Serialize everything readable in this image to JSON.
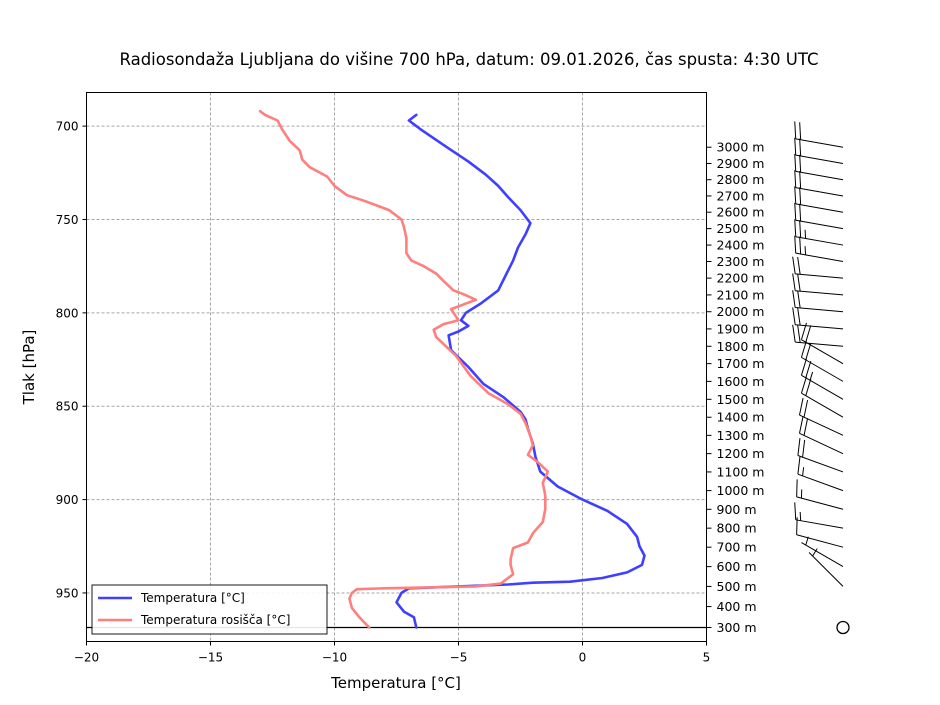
{
  "chart_data": {
    "type": "line",
    "title": "Radiosondaža Ljubljana do višine 700 hPa, datum: 09.01.2026, čas spusta: 4:30 UTC",
    "xlabel": "Temperatura [°C]",
    "ylabel": "Tlak [hPa]",
    "xlim": [
      -20,
      5
    ],
    "ylim": [
      976,
      682
    ],
    "x_ticks": [
      -20,
      -15,
      -10,
      -5,
      0,
      5
    ],
    "x_tick_labels": [
      "−20",
      "−15",
      "−10",
      "−5",
      "0",
      "5"
    ],
    "y_ticks": [
      700,
      750,
      800,
      850,
      900,
      950
    ],
    "y_tick_labels": [
      "700",
      "750",
      "800",
      "850",
      "900",
      "950"
    ],
    "grid": true,
    "surface_pressure": 968.5,
    "legend_position": "lower-left",
    "altitude_ticks": [
      {
        "label": "300 m",
        "p": 968.5
      },
      {
        "label": "400 m",
        "p": 957.3
      },
      {
        "label": "500 m",
        "p": 946.5
      },
      {
        "label": "600 m",
        "p": 935.9
      },
      {
        "label": "700 m",
        "p": 925.5
      },
      {
        "label": "800 m",
        "p": 915.3
      },
      {
        "label": "900 m",
        "p": 905.2
      },
      {
        "label": "1000 m",
        "p": 895.2
      },
      {
        "label": "1100 m",
        "p": 885.2
      },
      {
        "label": "1200 m",
        "p": 875.4
      },
      {
        "label": "1300 m",
        "p": 865.6
      },
      {
        "label": "1400 m",
        "p": 855.9
      },
      {
        "label": "1500 m",
        "p": 846.3
      },
      {
        "label": "1600 m",
        "p": 836.7
      },
      {
        "label": "1700 m",
        "p": 827.2
      },
      {
        "label": "1800 m",
        "p": 817.9
      },
      {
        "label": "1900 m",
        "p": 808.6
      },
      {
        "label": "2000 m",
        "p": 799.4
      },
      {
        "label": "2100 m",
        "p": 790.4
      },
      {
        "label": "2200 m",
        "p": 781.4
      },
      {
        "label": "2300 m",
        "p": 772.5
      },
      {
        "label": "2400 m",
        "p": 763.7
      },
      {
        "label": "2500 m",
        "p": 754.9
      },
      {
        "label": "2600 m",
        "p": 746.1
      },
      {
        "label": "2700 m",
        "p": 737.4
      },
      {
        "label": "2800 m",
        "p": 728.7
      },
      {
        "label": "2900 m",
        "p": 720.0
      },
      {
        "label": "3000 m",
        "p": 711.3
      }
    ],
    "series": [
      {
        "name": "Temperatura [°C]",
        "color": "#3f3fff",
        "points": [
          [
            -6.7,
            968.5
          ],
          [
            -6.8,
            963
          ],
          [
            -7.2,
            960
          ],
          [
            -7.5,
            955
          ],
          [
            -7.3,
            950
          ],
          [
            -7.0,
            947.5
          ],
          [
            -5.0,
            946.5
          ],
          [
            -3.0,
            945.5
          ],
          [
            -2.0,
            944.5
          ],
          [
            -0.5,
            944
          ],
          [
            0.8,
            942
          ],
          [
            1.8,
            939
          ],
          [
            2.4,
            935
          ],
          [
            2.5,
            930
          ],
          [
            2.3,
            925
          ],
          [
            2.2,
            920
          ],
          [
            1.8,
            913
          ],
          [
            1.0,
            906
          ],
          [
            0.0,
            900
          ],
          [
            -1.0,
            893
          ],
          [
            -1.7,
            885
          ],
          [
            -1.9,
            877
          ],
          [
            -2.0,
            870
          ],
          [
            -2.2,
            862
          ],
          [
            -2.3,
            857
          ],
          [
            -2.5,
            853
          ],
          [
            -3.2,
            845
          ],
          [
            -4.0,
            838
          ],
          [
            -4.6,
            829
          ],
          [
            -5.3,
            820
          ],
          [
            -5.4,
            812
          ],
          [
            -5.0,
            810
          ],
          [
            -4.6,
            807
          ],
          [
            -4.9,
            804
          ],
          [
            -4.7,
            800
          ],
          [
            -4.1,
            795
          ],
          [
            -3.4,
            788
          ],
          [
            -3.1,
            780
          ],
          [
            -2.8,
            772
          ],
          [
            -2.6,
            765
          ],
          [
            -2.3,
            758
          ],
          [
            -2.1,
            752
          ],
          [
            -2.5,
            745
          ],
          [
            -3.0,
            738
          ],
          [
            -3.4,
            732
          ],
          [
            -3.9,
            726
          ],
          [
            -4.6,
            719
          ],
          [
            -5.5,
            711
          ],
          [
            -6.5,
            702
          ],
          [
            -7.0,
            697
          ],
          [
            -6.7,
            694
          ]
        ]
      },
      {
        "name": "Temperatura rosišča [°C]",
        "color": "#ff7f7f",
        "points": [
          [
            -8.6,
            968.5
          ],
          [
            -9.0,
            963
          ],
          [
            -9.3,
            958
          ],
          [
            -9.4,
            953
          ],
          [
            -9.3,
            950
          ],
          [
            -9.1,
            948
          ],
          [
            -8.0,
            947.5
          ],
          [
            -6.0,
            947
          ],
          [
            -4.3,
            946.5
          ],
          [
            -3.3,
            945
          ],
          [
            -2.8,
            940
          ],
          [
            -2.9,
            935
          ],
          [
            -2.9,
            932
          ],
          [
            -2.8,
            926
          ],
          [
            -2.2,
            923
          ],
          [
            -2.0,
            918
          ],
          [
            -1.6,
            912
          ],
          [
            -1.5,
            905
          ],
          [
            -1.5,
            898
          ],
          [
            -1.6,
            891
          ],
          [
            -1.4,
            885
          ],
          [
            -1.8,
            880
          ],
          [
            -2.2,
            876
          ],
          [
            -2.0,
            871
          ],
          [
            -2.1,
            866
          ],
          [
            -2.3,
            859
          ],
          [
            -2.5,
            854
          ],
          [
            -3.0,
            849
          ],
          [
            -3.8,
            843
          ],
          [
            -4.5,
            834
          ],
          [
            -5.1,
            823
          ],
          [
            -5.9,
            813
          ],
          [
            -6.0,
            809
          ],
          [
            -5.6,
            806
          ],
          [
            -5.0,
            804
          ],
          [
            -5.3,
            798
          ],
          [
            -4.3,
            793
          ],
          [
            -4.8,
            790
          ],
          [
            -5.2,
            788
          ],
          [
            -5.6,
            783
          ],
          [
            -5.9,
            779
          ],
          [
            -6.4,
            775
          ],
          [
            -6.9,
            772
          ],
          [
            -7.1,
            768
          ],
          [
            -7.1,
            760
          ],
          [
            -7.2,
            754
          ],
          [
            -7.3,
            750
          ],
          [
            -7.8,
            745
          ],
          [
            -8.8,
            740
          ],
          [
            -9.5,
            737
          ],
          [
            -10.0,
            732
          ],
          [
            -10.3,
            727
          ],
          [
            -11.0,
            722
          ],
          [
            -11.3,
            718
          ],
          [
            -11.4,
            713
          ],
          [
            -11.8,
            708
          ],
          [
            -12.1,
            702
          ],
          [
            -12.3,
            697
          ],
          [
            -12.8,
            694
          ],
          [
            -13.0,
            692
          ]
        ]
      }
    ],
    "wind_barbs": [
      {
        "p": 711.3,
        "dir": 280,
        "kt": 20
      },
      {
        "p": 720.0,
        "dir": 280,
        "kt": 20
      },
      {
        "p": 728.7,
        "dir": 280,
        "kt": 20
      },
      {
        "p": 737.4,
        "dir": 280,
        "kt": 20
      },
      {
        "p": 746.1,
        "dir": 280,
        "kt": 20
      },
      {
        "p": 754.9,
        "dir": 280,
        "kt": 20
      },
      {
        "p": 763.7,
        "dir": 280,
        "kt": 25
      },
      {
        "p": 772.5,
        "dir": 280,
        "kt": 25
      },
      {
        "p": 781.4,
        "dir": 275,
        "kt": 20
      },
      {
        "p": 790.4,
        "dir": 275,
        "kt": 20
      },
      {
        "p": 799.4,
        "dir": 275,
        "kt": 20
      },
      {
        "p": 808.6,
        "dir": 275,
        "kt": 20
      },
      {
        "p": 817.9,
        "dir": 275,
        "kt": 20
      },
      {
        "p": 827.2,
        "dir": 300,
        "kt": 20
      },
      {
        "p": 836.7,
        "dir": 300,
        "kt": 20
      },
      {
        "p": 846.3,
        "dir": 300,
        "kt": 25
      },
      {
        "p": 855.9,
        "dir": 300,
        "kt": 20
      },
      {
        "p": 865.6,
        "dir": 295,
        "kt": 20
      },
      {
        "p": 875.4,
        "dir": 295,
        "kt": 20
      },
      {
        "p": 885.2,
        "dir": 290,
        "kt": 20
      },
      {
        "p": 895.2,
        "dir": 290,
        "kt": 15
      },
      {
        "p": 905.2,
        "dir": 285,
        "kt": 15
      },
      {
        "p": 915.3,
        "dir": 280,
        "kt": 15
      },
      {
        "p": 925.5,
        "dir": 285,
        "kt": 10
      },
      {
        "p": 935.9,
        "dir": 300,
        "kt": 5
      },
      {
        "p": 946.5,
        "dir": 315,
        "kt": 5
      },
      {
        "p": 968.5,
        "dir": 0,
        "kt": 0
      }
    ]
  }
}
